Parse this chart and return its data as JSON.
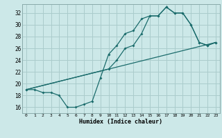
{
  "xlabel": "Humidex (Indice chaleur)",
  "bg_color": "#cce8e8",
  "grid_color": "#aacccc",
  "line_color": "#1a6b6b",
  "xlim": [
    -0.5,
    23.5
  ],
  "ylim": [
    15.0,
    33.5
  ],
  "xticks": [
    0,
    1,
    2,
    3,
    4,
    5,
    6,
    7,
    8,
    9,
    10,
    11,
    12,
    13,
    14,
    15,
    16,
    17,
    18,
    19,
    20,
    21,
    22,
    23
  ],
  "yticks": [
    16,
    18,
    20,
    22,
    24,
    26,
    28,
    30,
    32
  ],
  "line1_x": [
    0,
    1,
    2,
    3,
    4,
    5,
    6,
    7,
    8,
    9,
    10,
    11,
    12,
    13,
    14,
    15,
    16,
    17,
    18,
    19,
    20,
    21,
    22,
    23
  ],
  "line1_y": [
    19.0,
    19.0,
    18.5,
    18.5,
    18.0,
    16.0,
    16.0,
    16.5,
    17.0,
    21.0,
    25.0,
    26.5,
    28.5,
    29.0,
    31.0,
    31.5,
    31.5,
    33.0,
    32.0,
    32.0,
    30.0,
    27.0,
    26.5,
    27.0
  ],
  "line2_x": [
    0,
    23
  ],
  "line2_y": [
    19.0,
    27.0
  ],
  "line3_x": [
    0,
    10,
    11,
    12,
    13,
    14,
    15,
    16,
    17,
    18,
    19,
    20,
    21,
    22,
    23
  ],
  "line3_y": [
    19.0,
    22.5,
    24.0,
    26.0,
    26.5,
    28.5,
    31.5,
    31.5,
    33.0,
    32.0,
    32.0,
    30.0,
    27.0,
    26.5,
    27.0
  ]
}
